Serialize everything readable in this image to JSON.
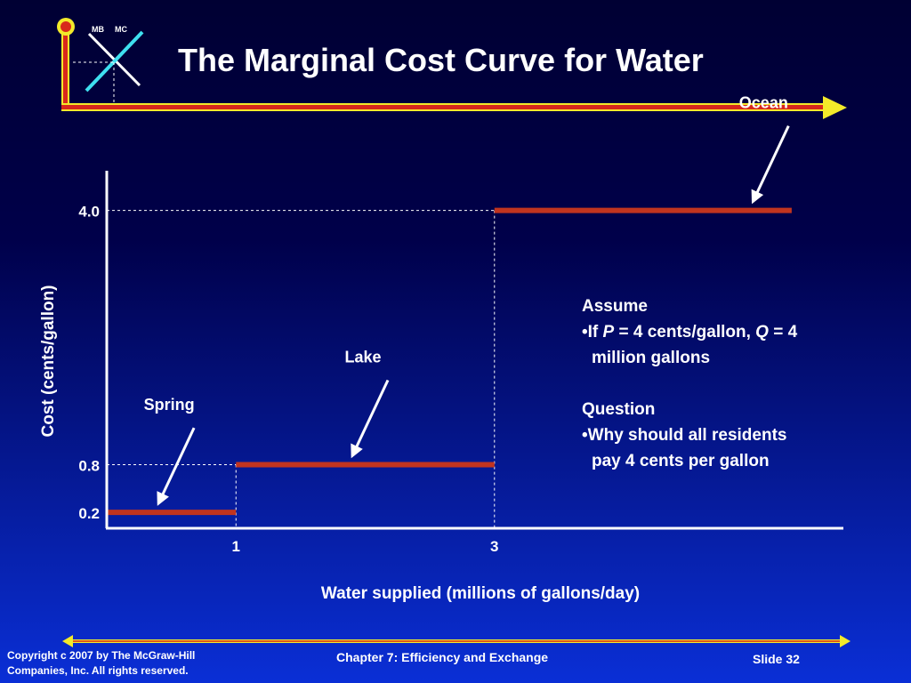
{
  "slide": {
    "title": "The Marginal Cost Curve for Water",
    "logo": {
      "mb_label": "MB",
      "mc_label": "MC"
    }
  },
  "colors": {
    "step_line": "#c1341f",
    "axis": "#ffffff",
    "accent_bar": "#f3ea2a",
    "logo_red": "#d8281b",
    "logo_cyan": "#3fe0f0"
  },
  "chart_data": {
    "type": "line",
    "step": true,
    "xlabel": "Water supplied (millions of gallons/day)",
    "ylabel": "Cost (cents/gallon)",
    "x_ticks": [
      "1",
      "3"
    ],
    "y_ticks": [
      "0.2",
      "0.8",
      "4.0"
    ],
    "series": [
      {
        "segments": [
          {
            "x_start": 0,
            "x_end": 1,
            "y": 0.2
          },
          {
            "x_start": 1,
            "x_end": 3,
            "y": 0.8
          },
          {
            "x_start": 3,
            "x_end": 5.3,
            "y": 4.0
          }
        ]
      }
    ],
    "annotations": [
      {
        "label": "Spring",
        "x": 0.4,
        "y": 0.2
      },
      {
        "label": "Lake",
        "x": 1.9,
        "y": 0.8
      },
      {
        "label": "Ocean",
        "x": 5.0,
        "y": 4.0
      }
    ],
    "xlim": [
      0,
      5.7
    ],
    "ylim": [
      0,
      4.5
    ]
  },
  "notes": {
    "assume_heading": "Assume",
    "assume_if": "•If ",
    "assume_p": "P",
    "assume_mid": " = 4 cents/gallon, ",
    "assume_q": "Q",
    "assume_end": " = 4",
    "assume_line2": "million gallons",
    "question_heading": "Question",
    "question_line1": "•Why should all residents",
    "question_line2": "pay 4 cents per gallon"
  },
  "footer": {
    "copyright_line1": "Copyright c 2007 by The McGraw-Hill",
    "copyright_line2": "Companies, Inc.  All rights reserved.",
    "chapter": "Chapter 7: Efficiency and Exchange",
    "slide_number": "Slide 32"
  }
}
